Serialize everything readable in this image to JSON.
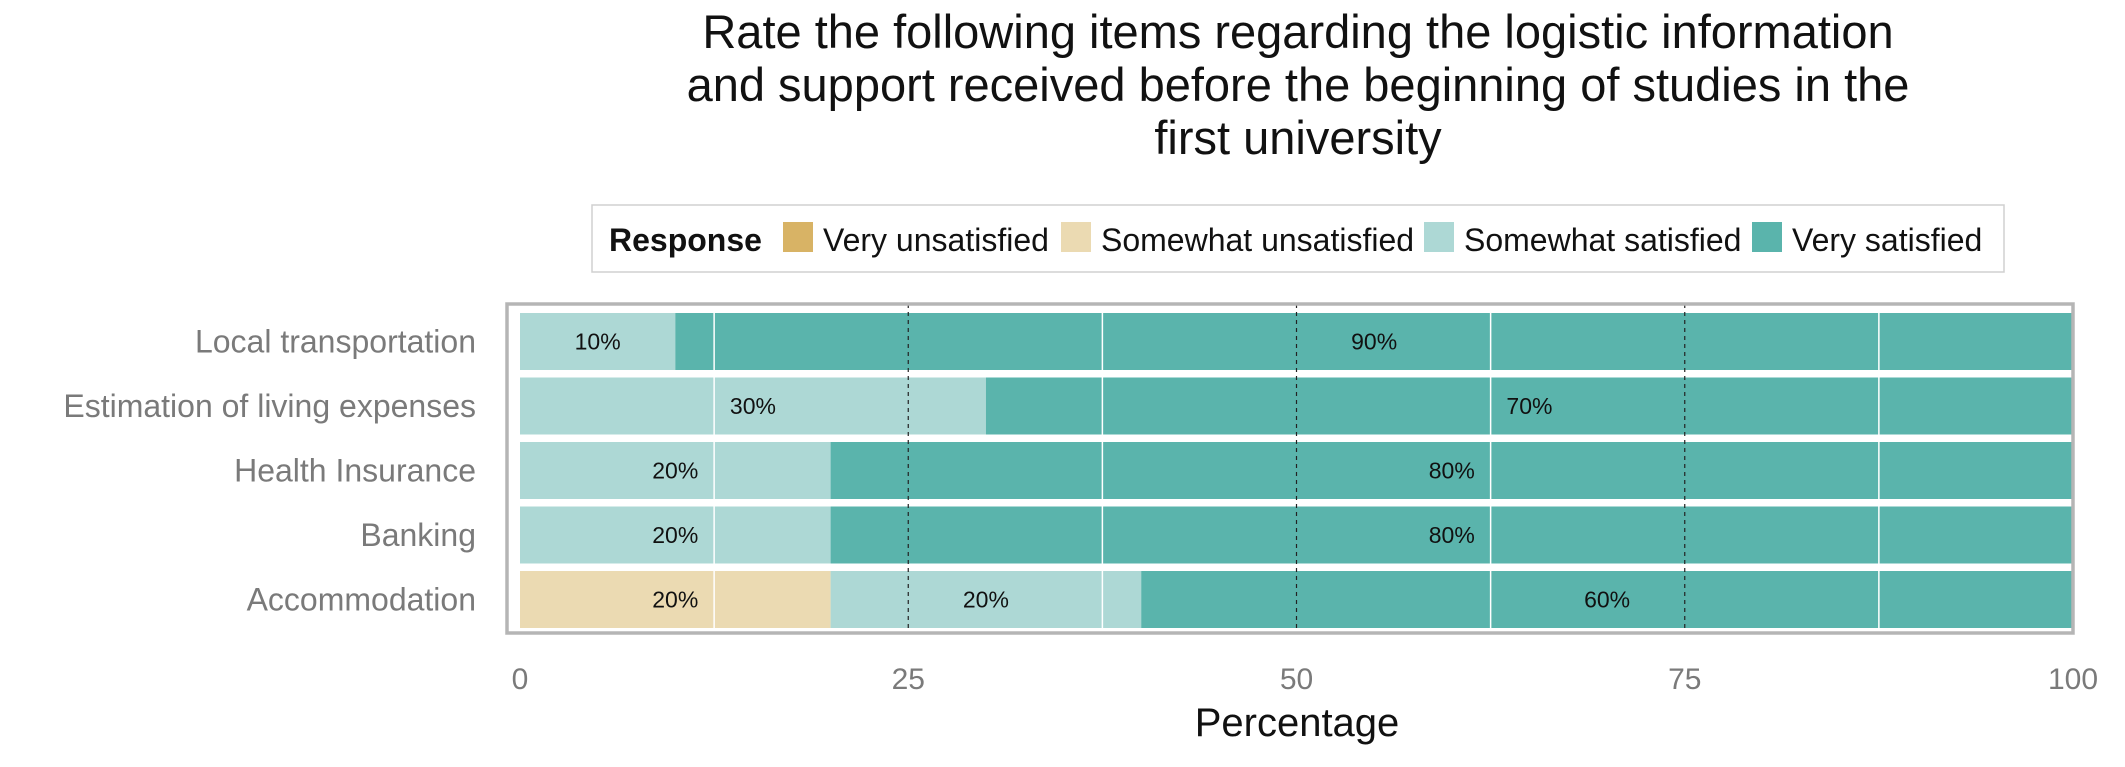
{
  "chart_data": {
    "type": "bar",
    "orientation": "horizontal",
    "stacked": true,
    "title_lines": [
      "Rate the following items regarding the logistic information",
      "and support received before the beginning of studies in the",
      "first university"
    ],
    "xlabel": "Percentage",
    "ylabel": "",
    "xlim": [
      0,
      100
    ],
    "x_ticks": [
      "0",
      "25",
      "50",
      "75",
      "100"
    ],
    "x_tick_values": [
      0,
      25,
      50,
      75,
      100
    ],
    "grid": true,
    "legend": {
      "title": "Response",
      "placement": "top"
    },
    "categories": [
      "Local transportation",
      "Estimation of living expenses",
      "Health Insurance",
      "Banking",
      "Accommodation"
    ],
    "series": [
      {
        "name": "Very unsatisfied",
        "color": "#D8B365",
        "values": [
          0,
          0,
          0,
          0,
          0
        ],
        "labels": [
          "",
          "",
          "",
          "",
          ""
        ]
      },
      {
        "name": "Somewhat unsatisfied",
        "color": "#EBDAB2",
        "values": [
          0,
          0,
          0,
          0,
          20
        ],
        "labels": [
          "",
          "",
          "",
          "",
          "20%"
        ]
      },
      {
        "name": "Somewhat satisfied",
        "color": "#ADD8D5",
        "values": [
          10,
          30,
          20,
          20,
          20
        ],
        "labels": [
          "10%",
          "30%",
          "20%",
          "20%",
          "20%"
        ]
      },
      {
        "name": "Very satisfied",
        "color": "#5AB4AC",
        "values": [
          90,
          70,
          80,
          80,
          60
        ],
        "labels": [
          "90%",
          "70%",
          "80%",
          "80%",
          "60%"
        ]
      }
    ]
  }
}
